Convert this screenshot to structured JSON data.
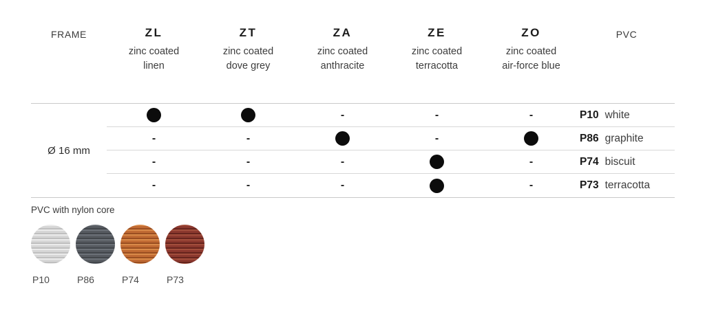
{
  "table": {
    "frame_header": "FRAME",
    "pvc_header": "PVC",
    "frame_size": "Ø 16 mm",
    "columns": [
      {
        "code": "ZL",
        "desc_line1": "zinc coated",
        "desc_line2": "linen"
      },
      {
        "code": "ZT",
        "desc_line1": "zinc coated",
        "desc_line2": "dove grey"
      },
      {
        "code": "ZA",
        "desc_line1": "zinc coated",
        "desc_line2": "anthracite"
      },
      {
        "code": "ZE",
        "desc_line1": "zinc coated",
        "desc_line2": "terracotta"
      },
      {
        "code": "ZO",
        "desc_line1": "zinc coated",
        "desc_line2": "air-force blue"
      }
    ],
    "rows": [
      {
        "cells": [
          "dot",
          "dot",
          "dash",
          "dash",
          "dash"
        ],
        "pvc_code": "P10",
        "pvc_name": "white"
      },
      {
        "cells": [
          "dash",
          "dash",
          "dot",
          "dash",
          "dot"
        ],
        "pvc_code": "P86",
        "pvc_name": "graphite"
      },
      {
        "cells": [
          "dash",
          "dash",
          "dash",
          "dot",
          "dash"
        ],
        "pvc_code": "P74",
        "pvc_name": "biscuit"
      },
      {
        "cells": [
          "dash",
          "dash",
          "dash",
          "dot",
          "dash"
        ],
        "pvc_code": "P73",
        "pvc_name": "terracotta"
      }
    ],
    "dash_glyph": "-"
  },
  "legend": {
    "title": "PVC with nylon core",
    "swatches": [
      {
        "code": "P10",
        "base": "#d6d6d6",
        "stripe": "#ebebeb",
        "dark": "#bfbfbf"
      },
      {
        "code": "P86",
        "base": "#565a60",
        "stripe": "#6c7178",
        "dark": "#42464b"
      },
      {
        "code": "P74",
        "base": "#c06a33",
        "stripe": "#d98a49",
        "dark": "#9a4e21"
      },
      {
        "code": "P73",
        "base": "#8b382e",
        "stripe": "#a24e3c",
        "dark": "#66241d"
      }
    ]
  }
}
